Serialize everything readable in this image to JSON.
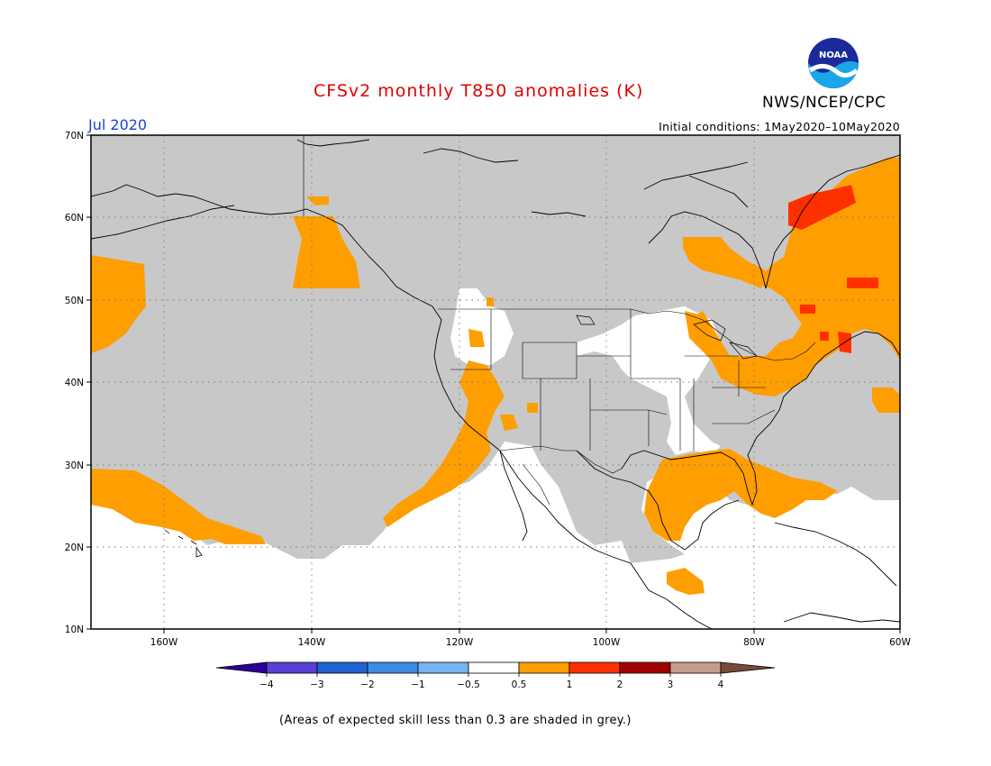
{
  "header": {
    "title": "CFSv2 monthly T850 anomalies (K)",
    "organization": "NWS/NCEP/CPC",
    "logo_text": "NOAA",
    "month": "Jul 2020",
    "initial_conditions": "Initial conditions: 1May2020–10May2020"
  },
  "map": {
    "lat_labels": [
      "70N",
      "60N",
      "50N",
      "40N",
      "30N",
      "20N",
      "10N"
    ],
    "lon_labels": [
      "160W",
      "140W",
      "120W",
      "100W",
      "80W",
      "60W"
    ],
    "lon_range": [
      -170,
      -60
    ],
    "lat_range": [
      10,
      70
    ],
    "colors": {
      "skill_grey": "#c8c8c8",
      "anomaly_0_5_to_1": "#ff9e00",
      "anomaly_1_to_2": "#ff3000",
      "coastline": "#000000"
    }
  },
  "colorbar": {
    "labels": [
      "−4",
      "−3",
      "−2",
      "−1",
      "−0.5",
      "0.5",
      "1",
      "2",
      "3",
      "4"
    ],
    "colors": [
      "#2c0096",
      "#5a3fd4",
      "#1f64d2",
      "#3c8ce6",
      "#78b4f0",
      "#ffffff",
      "#ff9e00",
      "#ff3000",
      "#a00000",
      "#c89c8a",
      "#784a3c"
    ]
  },
  "footnote": "(Areas of expected skill less than 0.3 are shaded in grey.)"
}
